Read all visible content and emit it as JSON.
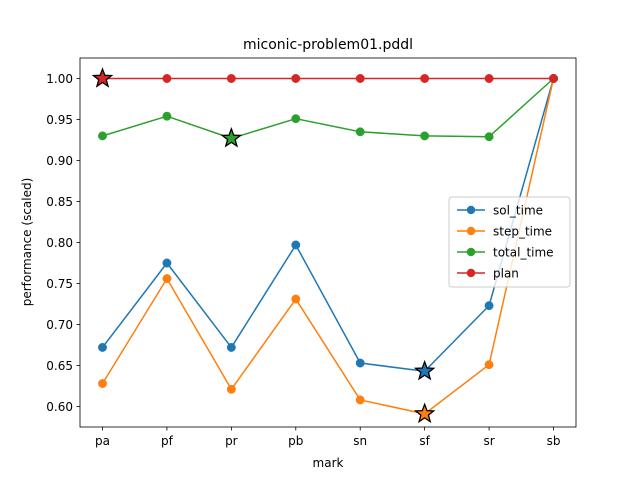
{
  "chart_data": {
    "type": "line",
    "title": "miconic-problem01.pddl",
    "xlabel": "mark",
    "ylabel": "performance (scaled)",
    "categories": [
      "pa",
      "pf",
      "pr",
      "pb",
      "sn",
      "sf",
      "sr",
      "sb"
    ],
    "ylim": [
      0.575,
      1.025
    ],
    "yticks": [
      0.6,
      0.65,
      0.7,
      0.75,
      0.8,
      0.85,
      0.9,
      0.95,
      1.0
    ],
    "ytick_labels": [
      "0.60",
      "0.65",
      "0.70",
      "0.75",
      "0.80",
      "0.85",
      "0.90",
      "0.95",
      "1.00"
    ],
    "grid": false,
    "legend_position": "center-right",
    "series": [
      {
        "name": "sol_time",
        "color": "#1f77b4",
        "values": [
          0.672,
          0.775,
          0.672,
          0.797,
          0.653,
          0.643,
          0.723,
          1.0
        ],
        "best_marker_index": 5
      },
      {
        "name": "step_time",
        "color": "#ff7f0e",
        "values": [
          0.628,
          0.756,
          0.621,
          0.731,
          0.608,
          0.591,
          0.651,
          1.0
        ],
        "best_marker_index": 5
      },
      {
        "name": "total_time",
        "color": "#2ca02c",
        "values": [
          0.93,
          0.954,
          0.927,
          0.951,
          0.935,
          0.93,
          0.929,
          1.0
        ],
        "best_marker_index": 2
      },
      {
        "name": "plan",
        "color": "#d62728",
        "values": [
          1.0,
          1.0,
          1.0,
          1.0,
          1.0,
          1.0,
          1.0,
          1.0
        ],
        "best_marker_index": 0
      }
    ]
  }
}
